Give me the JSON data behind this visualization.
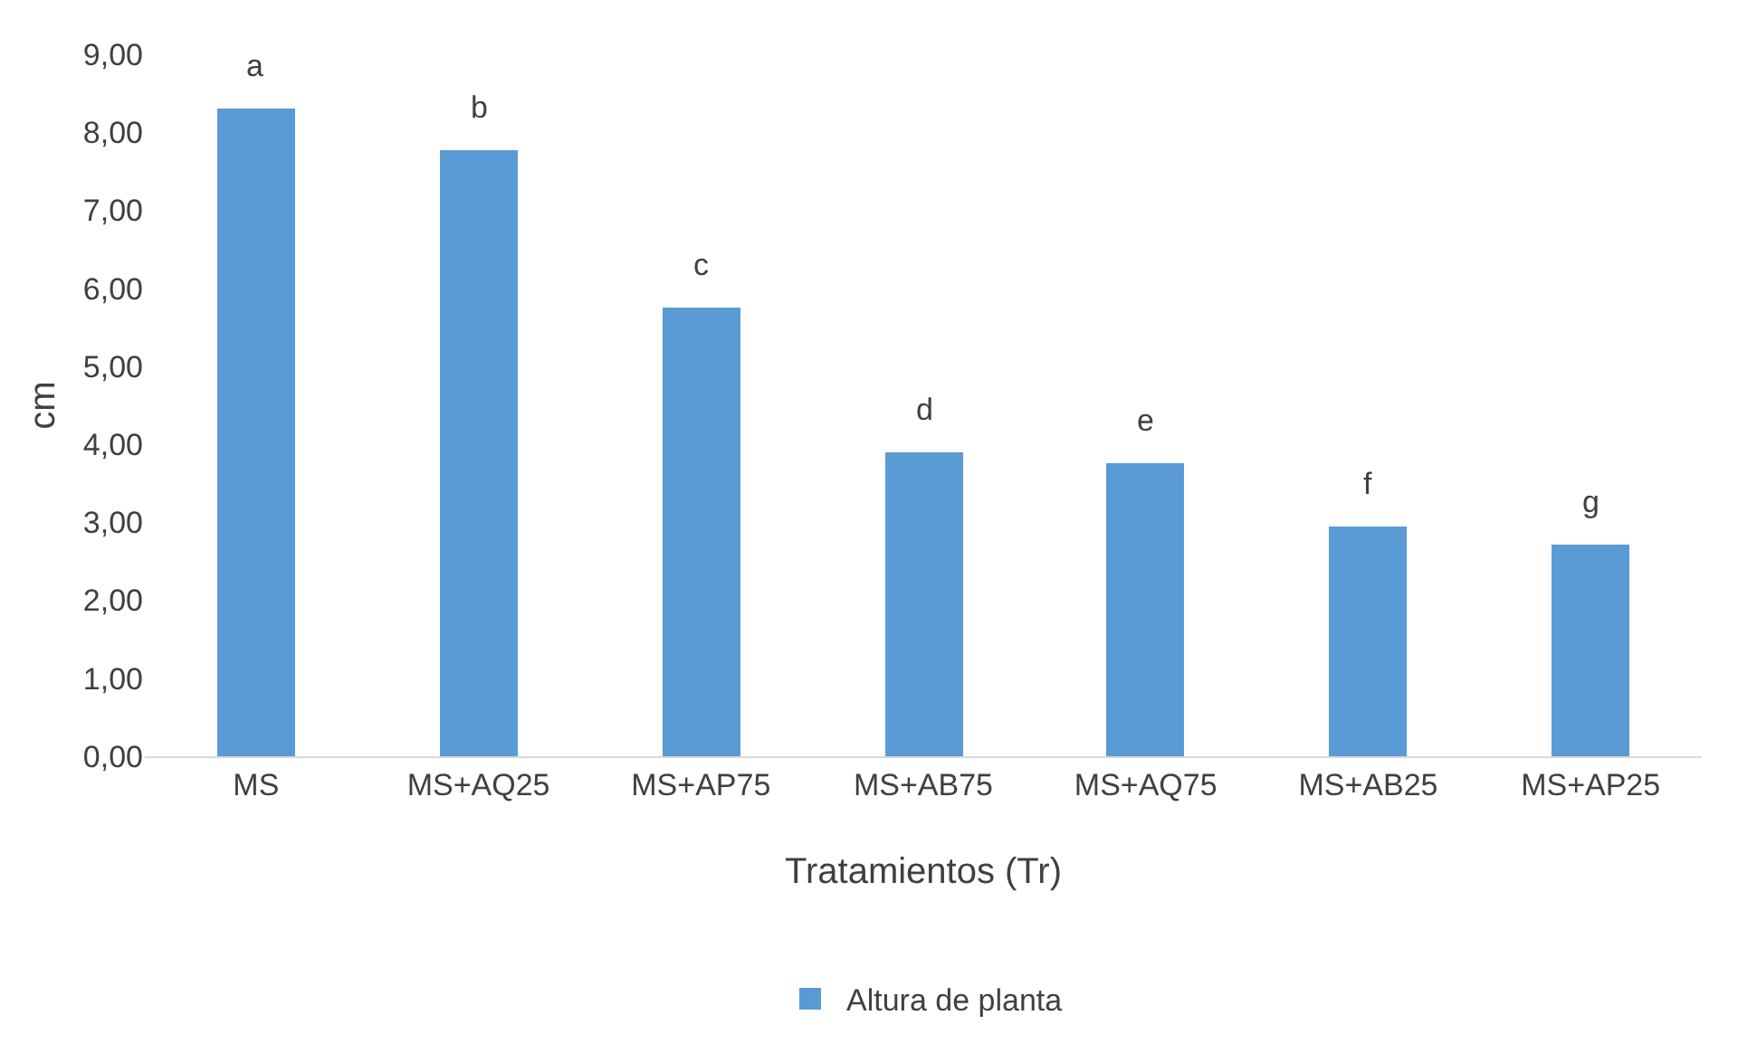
{
  "chart_data": {
    "type": "bar",
    "ylabel": "cm",
    "xlabel": "Tratamientos (Tr)",
    "categories": [
      "MS",
      "MS+AQ25",
      "MS+AP75",
      "MS+AB75",
      "MS+AQ75",
      "MS+AB25",
      "MS+AP25"
    ],
    "series": [
      {
        "name": "Altura de planta",
        "color": "#5b9bd5",
        "values": [
          8.3,
          7.78,
          5.76,
          3.89,
          3.75,
          2.94,
          2.72
        ]
      }
    ],
    "ylim": [
      0,
      9
    ],
    "yticks": [
      {
        "value": 0,
        "label": "0,00"
      },
      {
        "value": 1,
        "label": "1,00"
      },
      {
        "value": 2,
        "label": "2,00"
      },
      {
        "value": 3,
        "label": "3,00"
      },
      {
        "value": 4,
        "label": "4,00"
      },
      {
        "value": 5,
        "label": "5,00"
      },
      {
        "value": 6,
        "label": "6,00"
      },
      {
        "value": 7,
        "label": "7,00"
      },
      {
        "value": 8,
        "label": "8,00"
      },
      {
        "value": 9,
        "label": "9,00"
      }
    ],
    "annotations": [
      {
        "text": "a",
        "x": "MS",
        "y": 8.3
      },
      {
        "text": "b",
        "x": "MS+AQ25",
        "y": 7.78
      },
      {
        "text": "c",
        "x": "MS+AP75",
        "y": 5.76
      },
      {
        "text": "d",
        "x": "MS+AB75",
        "y": 3.89
      },
      {
        "text": "e",
        "x": "MS+AQ75",
        "y": 3.75
      },
      {
        "text": "f",
        "x": "MS+AB25",
        "y": 2.94
      },
      {
        "text": "g",
        "x": "MS+AP25",
        "y": 2.72
      }
    ],
    "grid": false,
    "legend": "bottom"
  }
}
